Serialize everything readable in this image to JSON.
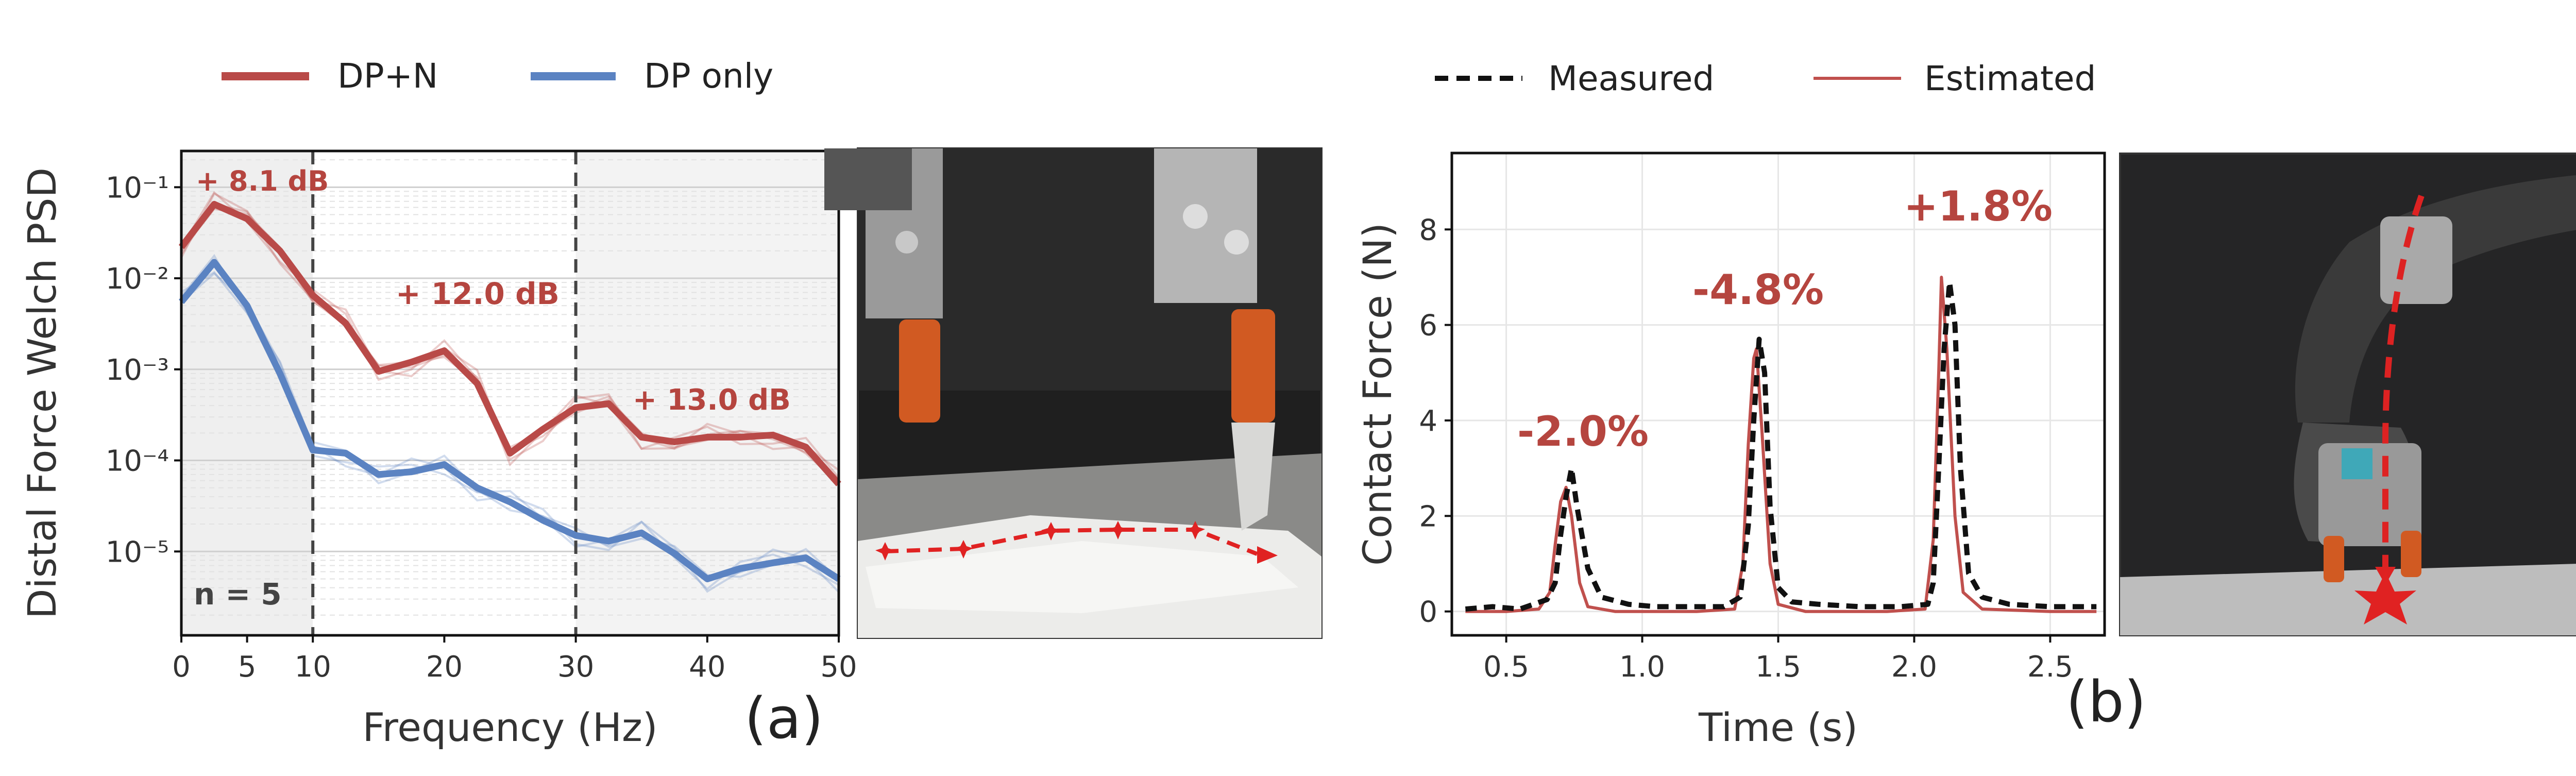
{
  "colors": {
    "red": "#b94a48",
    "blue": "#5b83c2",
    "black": "#111111",
    "estimated": "#c0504d",
    "annotation": "#b5453f"
  },
  "legend_left": {
    "items": [
      {
        "label": "DP+N",
        "color": "#b94a48"
      },
      {
        "label": "DP only",
        "color": "#5b83c2"
      }
    ]
  },
  "legend_right": {
    "items": [
      {
        "label": "Measured",
        "style": "dashed",
        "color": "#111111"
      },
      {
        "label": "Estimated",
        "style": "solid",
        "color": "#c0504d"
      }
    ]
  },
  "panel_labels": {
    "a": "(a)",
    "b": "(b)"
  },
  "photos": {
    "left": {
      "description_icon": "robot-gripper-photo-icon"
    },
    "right": {
      "description_icon": "robot-arm-photo-icon"
    }
  },
  "chart_data": [
    {
      "type": "line",
      "xlabel": "Frequency (Hz)",
      "ylabel": "Distal Force Welch PSD",
      "yscale": "log",
      "xlim": [
        0,
        50
      ],
      "ylim": [
        1.2e-06,
        0.25
      ],
      "x_ticks": [
        0,
        5,
        10,
        20,
        30,
        40,
        50
      ],
      "x_tick_labels": [
        "0",
        "5",
        "10",
        "20",
        "30",
        "40",
        "50"
      ],
      "y_ticks": [
        1e-05,
        0.0001,
        0.001,
        0.01,
        0.1
      ],
      "y_tick_labels": [
        "10⁻⁵",
        "10⁻⁴",
        "10⁻³",
        "10⁻²",
        "10⁻¹"
      ],
      "grid": true,
      "vlines": [
        10,
        30
      ],
      "x": [
        0,
        2.5,
        5,
        7.5,
        10,
        12.5,
        15,
        17.5,
        20,
        22.5,
        25,
        27.5,
        30,
        32.5,
        35,
        37.5,
        40,
        42.5,
        45,
        47.5,
        50
      ],
      "series": [
        {
          "name": "DP+N",
          "color": "#b94a48",
          "values": [
            0.022,
            0.065,
            0.045,
            0.02,
            0.0065,
            0.0032,
            0.00095,
            0.0012,
            0.0016,
            0.0007,
            0.00012,
            0.00022,
            0.00038,
            0.00042,
            0.00018,
            0.00016,
            0.00018,
            0.00018,
            0.00019,
            0.00014,
            5.5e-05
          ]
        },
        {
          "name": "DP only",
          "color": "#5b83c2",
          "values": [
            0.0055,
            0.015,
            0.005,
            0.0009,
            0.00013,
            0.00012,
            7e-05,
            7.5e-05,
            9e-05,
            5e-05,
            3.5e-05,
            2.2e-05,
            1.5e-05,
            1.3e-05,
            1.6e-05,
            9.5e-06,
            5e-06,
            6.5e-06,
            7.5e-06,
            8.5e-06,
            5e-06
          ]
        }
      ],
      "faint_trials": 4,
      "annotations": [
        "+ 8.1 dB",
        "+ 12.0 dB",
        "+ 13.0 dB",
        "n = 5"
      ]
    },
    {
      "type": "line",
      "xlabel": "Time (s)",
      "ylabel": "Contact Force (N)",
      "xlim": [
        0.3,
        2.7
      ],
      "ylim": [
        -0.5,
        9.6
      ],
      "x_ticks": [
        0.5,
        1.0,
        1.5,
        2.0,
        2.5
      ],
      "x_tick_labels": [
        "0.5",
        "1.0",
        "1.5",
        "2.0",
        "2.5"
      ],
      "y_ticks": [
        0,
        2,
        4,
        6,
        8
      ],
      "y_tick_labels": [
        "0",
        "2",
        "4",
        "6",
        "8"
      ],
      "grid": true,
      "series": [
        {
          "name": "Measured",
          "color": "#111111",
          "style": "dashed",
          "points": [
            [
              0.35,
              0.05
            ],
            [
              0.45,
              0.1
            ],
            [
              0.55,
              0.05
            ],
            [
              0.6,
              0.15
            ],
            [
              0.65,
              0.25
            ],
            [
              0.68,
              0.6
            ],
            [
              0.7,
              1.6
            ],
            [
              0.72,
              2.4
            ],
            [
              0.74,
              3.0
            ],
            [
              0.76,
              2.2
            ],
            [
              0.8,
              0.9
            ],
            [
              0.85,
              0.3
            ],
            [
              0.95,
              0.15
            ],
            [
              1.05,
              0.1
            ],
            [
              1.2,
              0.1
            ],
            [
              1.3,
              0.1
            ],
            [
              1.36,
              0.3
            ],
            [
              1.39,
              1.8
            ],
            [
              1.41,
              4.0
            ],
            [
              1.43,
              5.7
            ],
            [
              1.45,
              5.0
            ],
            [
              1.47,
              2.2
            ],
            [
              1.5,
              0.5
            ],
            [
              1.55,
              0.2
            ],
            [
              1.65,
              0.15
            ],
            [
              1.8,
              0.1
            ],
            [
              1.95,
              0.1
            ],
            [
              2.05,
              0.15
            ],
            [
              2.07,
              0.6
            ],
            [
              2.09,
              3.0
            ],
            [
              2.11,
              5.5
            ],
            [
              2.13,
              6.9
            ],
            [
              2.15,
              6.0
            ],
            [
              2.17,
              3.0
            ],
            [
              2.2,
              0.8
            ],
            [
              2.25,
              0.3
            ],
            [
              2.35,
              0.15
            ],
            [
              2.5,
              0.1
            ],
            [
              2.6,
              0.1
            ],
            [
              2.67,
              0.1
            ]
          ]
        },
        {
          "name": "Estimated",
          "color": "#c0504d",
          "style": "solid",
          "points": [
            [
              0.35,
              0.0
            ],
            [
              0.5,
              0.0
            ],
            [
              0.62,
              0.05
            ],
            [
              0.66,
              0.4
            ],
            [
              0.68,
              1.4
            ],
            [
              0.7,
              2.3
            ],
            [
              0.72,
              2.6
            ],
            [
              0.74,
              2.0
            ],
            [
              0.77,
              0.6
            ],
            [
              0.8,
              0.1
            ],
            [
              0.9,
              0.0
            ],
            [
              1.2,
              0.0
            ],
            [
              1.34,
              0.05
            ],
            [
              1.37,
              1.0
            ],
            [
              1.39,
              3.5
            ],
            [
              1.41,
              5.3
            ],
            [
              1.42,
              5.5
            ],
            [
              1.44,
              3.8
            ],
            [
              1.47,
              1.0
            ],
            [
              1.5,
              0.15
            ],
            [
              1.6,
              0.0
            ],
            [
              1.9,
              0.0
            ],
            [
              2.04,
              0.05
            ],
            [
              2.07,
              1.5
            ],
            [
              2.09,
              5.0
            ],
            [
              2.1,
              7.0
            ],
            [
              2.12,
              5.5
            ],
            [
              2.15,
              2.0
            ],
            [
              2.18,
              0.4
            ],
            [
              2.25,
              0.05
            ],
            [
              2.5,
              0.0
            ],
            [
              2.67,
              0.0
            ]
          ]
        }
      ],
      "annotations": [
        "-2.0%",
        "-4.8%",
        "+1.8%"
      ]
    }
  ]
}
